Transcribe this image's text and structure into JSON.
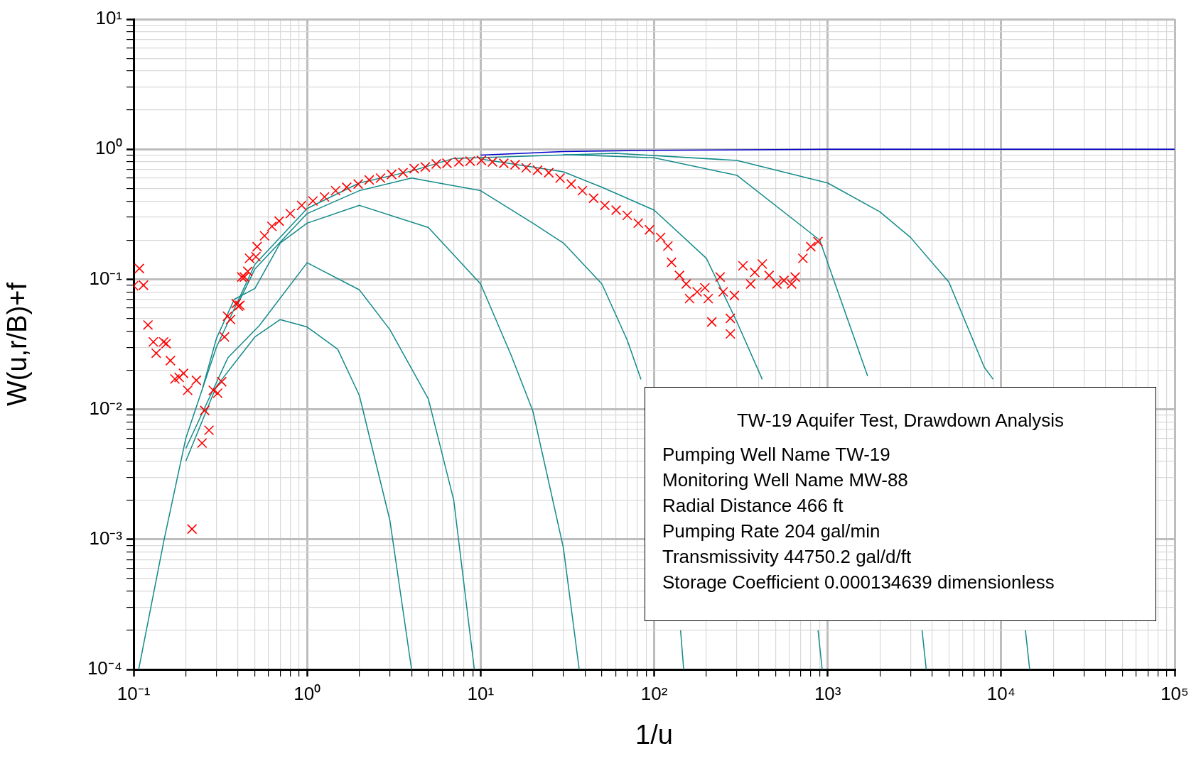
{
  "chart_data": {
    "type": "line",
    "xlabel": "1/u",
    "ylabel": "W(u,r/B)+f",
    "log": "xy",
    "grid": true,
    "legend": false,
    "xlim": [
      0.1,
      100000
    ],
    "ylim": [
      0.0001,
      10
    ],
    "xticks": [
      {
        "value": 0.1,
        "label": "10⁻¹"
      },
      {
        "value": 1,
        "label": "10⁰"
      },
      {
        "value": 10,
        "label": "10¹"
      },
      {
        "value": 100,
        "label": "10²"
      },
      {
        "value": 1000,
        "label": "10³"
      },
      {
        "value": 10000,
        "label": "10⁴"
      },
      {
        "value": 100000,
        "label": "10⁵"
      },
      {
        "value": 0.2,
        "label": null
      },
      {
        "value": 0.3,
        "label": null
      },
      {
        "value": 0.4,
        "label": null
      },
      {
        "value": 0.5,
        "label": null
      },
      {
        "value": 0.6,
        "label": null
      },
      {
        "value": 0.7,
        "label": null
      },
      {
        "value": 0.8,
        "label": null
      },
      {
        "value": 0.9,
        "label": null
      },
      {
        "value": 2,
        "label": null
      },
      {
        "value": 3,
        "label": null
      },
      {
        "value": 4,
        "label": null
      },
      {
        "value": 5,
        "label": null
      },
      {
        "value": 6,
        "label": null
      },
      {
        "value": 7,
        "label": null
      },
      {
        "value": 8,
        "label": null
      },
      {
        "value": 9,
        "label": null
      },
      {
        "value": 20,
        "label": null
      },
      {
        "value": 30,
        "label": null
      },
      {
        "value": 40,
        "label": null
      },
      {
        "value": 50,
        "label": null
      },
      {
        "value": 60,
        "label": null
      },
      {
        "value": 70,
        "label": null
      },
      {
        "value": 80,
        "label": null
      },
      {
        "value": 90,
        "label": null
      },
      {
        "value": 200,
        "label": null
      },
      {
        "value": 300,
        "label": null
      },
      {
        "value": 400,
        "label": null
      },
      {
        "value": 500,
        "label": null
      },
      {
        "value": 600,
        "label": null
      },
      {
        "value": 700,
        "label": null
      },
      {
        "value": 800,
        "label": null
      },
      {
        "value": 900,
        "label": null
      },
      {
        "value": 2000,
        "label": null
      },
      {
        "value": 3000,
        "label": null
      },
      {
        "value": 4000,
        "label": null
      },
      {
        "value": 5000,
        "label": null
      },
      {
        "value": 6000,
        "label": null
      },
      {
        "value": 7000,
        "label": null
      },
      {
        "value": 8000,
        "label": null
      },
      {
        "value": 9000,
        "label": null
      },
      {
        "value": 20000,
        "label": null
      },
      {
        "value": 30000,
        "label": null
      },
      {
        "value": 40000,
        "label": null
      },
      {
        "value": 50000,
        "label": null
      },
      {
        "value": 60000,
        "label": null
      },
      {
        "value": 70000,
        "label": null
      },
      {
        "value": 80000,
        "label": null
      },
      {
        "value": 90000,
        "label": null
      }
    ],
    "yticks": [
      {
        "value": 0.0001,
        "label": "10⁻⁴"
      },
      {
        "value": 0.001,
        "label": "10⁻³"
      },
      {
        "value": 0.01,
        "label": "10⁻²"
      },
      {
        "value": 0.1,
        "label": "10⁻¹"
      },
      {
        "value": 1,
        "label": "10⁰"
      },
      {
        "value": 10,
        "label": "10¹"
      },
      {
        "value": 0.0002,
        "label": null
      },
      {
        "value": 0.0003,
        "label": null
      },
      {
        "value": 0.0004,
        "label": null
      },
      {
        "value": 0.0005,
        "label": null
      },
      {
        "value": 0.0006,
        "label": null
      },
      {
        "value": 0.0007,
        "label": null
      },
      {
        "value": 0.0008,
        "label": null
      },
      {
        "value": 0.0009,
        "label": null
      },
      {
        "value": 0.002,
        "label": null
      },
      {
        "value": 0.003,
        "label": null
      },
      {
        "value": 0.004,
        "label": null
      },
      {
        "value": 0.005,
        "label": null
      },
      {
        "value": 0.006,
        "label": null
      },
      {
        "value": 0.007,
        "label": null
      },
      {
        "value": 0.008,
        "label": null
      },
      {
        "value": 0.009,
        "label": null
      },
      {
        "value": 0.02,
        "label": null
      },
      {
        "value": 0.03,
        "label": null
      },
      {
        "value": 0.04,
        "label": null
      },
      {
        "value": 0.05,
        "label": null
      },
      {
        "value": 0.06,
        "label": null
      },
      {
        "value": 0.07,
        "label": null
      },
      {
        "value": 0.08,
        "label": null
      },
      {
        "value": 0.09,
        "label": null
      },
      {
        "value": 0.2,
        "label": null
      },
      {
        "value": 0.3,
        "label": null
      },
      {
        "value": 0.4,
        "label": null
      },
      {
        "value": 0.5,
        "label": null
      },
      {
        "value": 0.6,
        "label": null
      },
      {
        "value": 0.7,
        "label": null
      },
      {
        "value": 0.8,
        "label": null
      },
      {
        "value": 0.9,
        "label": null
      },
      {
        "value": 2,
        "label": null
      },
      {
        "value": 3,
        "label": null
      },
      {
        "value": 4,
        "label": null
      },
      {
        "value": 5,
        "label": null
      },
      {
        "value": 6,
        "label": null
      },
      {
        "value": 7,
        "label": null
      },
      {
        "value": 8,
        "label": null
      },
      {
        "value": 9,
        "label": null
      }
    ],
    "annotations": [
      "TW-19 Aquifer Test, Drawdown Analysis",
      "Pumping Well Name  TW-19",
      "Monitoring Well Name  MW-88",
      "Radial Distance  466  ft",
      "Pumping Rate  204  gal/min",
      "Transmissivity  44750.2  gal/d/ft",
      "Storage Coefficient  0.000134639  dimensionless"
    ],
    "series": [
      {
        "type": "line",
        "color": "#138a8a",
        "x": [
          0.107,
          0.15,
          0.2,
          0.3,
          0.5,
          1,
          2,
          4,
          7,
          60,
          300,
          1000,
          2000,
          3000,
          5000,
          8000,
          9000,
          10000,
          13800,
          14600
        ],
        "values": [
          0.0001,
          0.001,
          0.006,
          0.03,
          0.13,
          0.35,
          0.55,
          0.68,
          0.85,
          0.93,
          0.82,
          0.55,
          0.33,
          0.21,
          0.095,
          0.021,
          0.017,
          null,
          0.0002,
          0.0001
        ]
      },
      {
        "type": "line",
        "color": "#138a8a",
        "x": [
          30,
          100,
          300,
          900,
          1700,
          2000,
          3500,
          3700
        ],
        "values": [
          0.91,
          0.86,
          0.63,
          0.2,
          0.018,
          null,
          0.0002,
          0.0001
        ]
      },
      {
        "type": "line",
        "color": "#138a8a",
        "x": [
          10,
          30,
          50,
          100,
          200,
          300,
          420,
          500,
          880,
          930
        ],
        "values": [
          0.84,
          0.67,
          0.51,
          0.34,
          0.145,
          0.047,
          0.017,
          null,
          0.0002,
          0.0001
        ]
      },
      {
        "type": "line",
        "color": "#138a8a",
        "x": [
          0.4,
          0.5,
          1,
          2,
          4,
          10,
          20,
          30,
          50,
          70,
          84,
          100,
          142,
          148
        ],
        "values": [
          0.065,
          0.12,
          0.32,
          0.48,
          0.6,
          0.48,
          0.27,
          0.19,
          0.092,
          0.034,
          0.017,
          null,
          0.0002,
          0.0001
        ]
      },
      {
        "type": "line",
        "color": "#138a8a",
        "x": [
          0.25,
          0.3,
          0.38,
          0.5,
          0.7,
          1,
          2,
          5,
          10,
          15,
          20,
          30,
          37
        ],
        "values": [
          0.0146,
          0.035,
          0.07,
          0.085,
          0.19,
          0.27,
          0.37,
          0.25,
          0.092,
          0.026,
          0.0097,
          0.00086,
          0.0001
        ]
      },
      {
        "type": "line",
        "color": "#138a8a",
        "x": [
          0.2,
          0.35,
          0.53,
          1,
          2,
          3,
          5,
          7,
          9.2
        ],
        "values": [
          0.005,
          0.025,
          0.044,
          0.134,
          0.083,
          0.041,
          0.012,
          0.002,
          0.0001
        ]
      },
      {
        "type": "line",
        "color": "#138a8a",
        "x": [
          0.2,
          0.3,
          0.5,
          0.7,
          1,
          1.5,
          2,
          3,
          4
        ],
        "values": [
          0.004,
          0.015,
          0.036,
          0.049,
          0.043,
          0.029,
          0.0128,
          0.0014,
          0.0001
        ]
      },
      {
        "type": "line",
        "color": "#0000cc",
        "x": [
          10,
          30,
          100,
          1000,
          100000
        ],
        "values": [
          0.9,
          0.96,
          0.98,
          1,
          1
        ]
      },
      {
        "type": "scatter",
        "color": "#ff0000",
        "marker": "cross",
        "x": [
          0.108,
          0.1,
          0.114,
          0.121,
          0.13,
          0.149,
          0.154,
          0.135,
          0.163,
          0.173,
          0.183,
          0.194,
          0.205,
          0.23,
          0.257,
          0.248,
          0.272,
          0.288,
          0.305,
          0.322,
          0.217,
          0.334,
          0.348,
          0.362,
          0.39,
          0.41,
          0.435,
          0.455,
          0.507,
          0.402,
          0.42,
          0.466,
          0.515,
          0.568,
          0.627,
          0.69,
          0.8,
          0.93,
          1.08,
          1.26,
          1.46,
          1.69,
          1.97,
          2.28,
          2.65,
          3.07,
          3.57,
          4.14,
          4.8,
          5.55,
          6.4,
          7.5,
          8.7,
          10.1,
          11.7,
          13.6,
          15.8,
          18.3,
          21.3,
          24.7,
          28.7,
          33.3,
          38.6,
          44.8,
          52,
          60.4,
          70,
          81,
          94,
          109,
          120,
          126,
          140,
          153,
          160,
          177,
          196,
          205,
          215,
          240,
          250,
          275,
          275,
          290,
          325,
          360,
          380,
          420,
          460,
          510,
          560,
          620,
          650,
          720,
          800,
          880
        ],
        "values": [
          0.121,
          0.089,
          0.09,
          0.0445,
          0.033,
          0.033,
          0.032,
          0.027,
          0.0237,
          0.0171,
          0.0176,
          0.0189,
          0.014,
          0.0167,
          0.0098,
          0.0055,
          0.0069,
          0.014,
          0.0133,
          0.0163,
          0.0012,
          0.036,
          0.052,
          0.049,
          0.065,
          0.063,
          0.104,
          0.115,
          0.149,
          0.062,
          0.104,
          0.145,
          0.178,
          0.216,
          0.255,
          0.28,
          0.32,
          0.37,
          0.4,
          0.43,
          0.48,
          0.51,
          0.54,
          0.58,
          0.6,
          0.64,
          0.66,
          0.71,
          0.73,
          0.77,
          0.78,
          0.8,
          0.81,
          0.82,
          0.8,
          0.78,
          0.76,
          0.72,
          0.69,
          0.66,
          0.6,
          0.54,
          0.48,
          0.42,
          0.37,
          0.34,
          0.31,
          0.27,
          0.24,
          0.21,
          0.18,
          0.135,
          0.107,
          0.092,
          0.071,
          0.08,
          0.086,
          0.071,
          0.047,
          0.104,
          0.08,
          0.05,
          0.038,
          0.075,
          0.127,
          0.092,
          0.113,
          0.131,
          0.107,
          0.092,
          0.098,
          0.092,
          0.104,
          0.145,
          0.178,
          0.195
        ]
      }
    ]
  }
}
